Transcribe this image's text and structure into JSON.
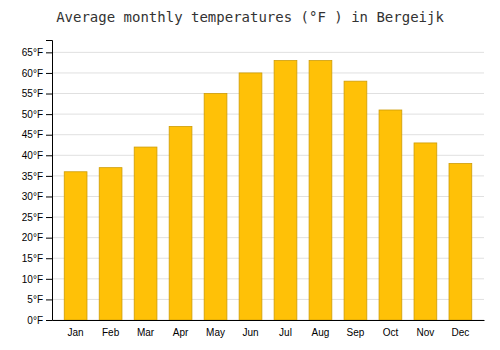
{
  "chart_data": {
    "type": "bar",
    "title": "Average monthly temperatures (°F ) in Bergeijk",
    "categories": [
      "Jan",
      "Feb",
      "Mar",
      "Apr",
      "May",
      "Jun",
      "Jul",
      "Aug",
      "Sep",
      "Oct",
      "Nov",
      "Dec"
    ],
    "values": [
      36,
      37,
      42,
      47,
      55,
      60,
      63,
      63,
      58,
      51,
      43,
      38
    ],
    "color": "#FFC107",
    "ylim": [
      0,
      68
    ],
    "yticks": [
      {
        "value": 0,
        "label": "0°F"
      },
      {
        "value": 5,
        "label": "5°F"
      },
      {
        "value": 10,
        "label": "10°F"
      },
      {
        "value": 15,
        "label": "15°F"
      },
      {
        "value": 20,
        "label": "20°F"
      },
      {
        "value": 25,
        "label": "25°F"
      },
      {
        "value": 30,
        "label": "30°F"
      },
      {
        "value": 35,
        "label": "35°F"
      },
      {
        "value": 40,
        "label": "40°F"
      },
      {
        "value": 45,
        "label": "45°F"
      },
      {
        "value": 50,
        "label": "50°F"
      },
      {
        "value": 55,
        "label": "55°F"
      },
      {
        "value": 60,
        "label": "60°F"
      },
      {
        "value": 65,
        "label": "65°F"
      }
    ],
    "grid": true
  }
}
